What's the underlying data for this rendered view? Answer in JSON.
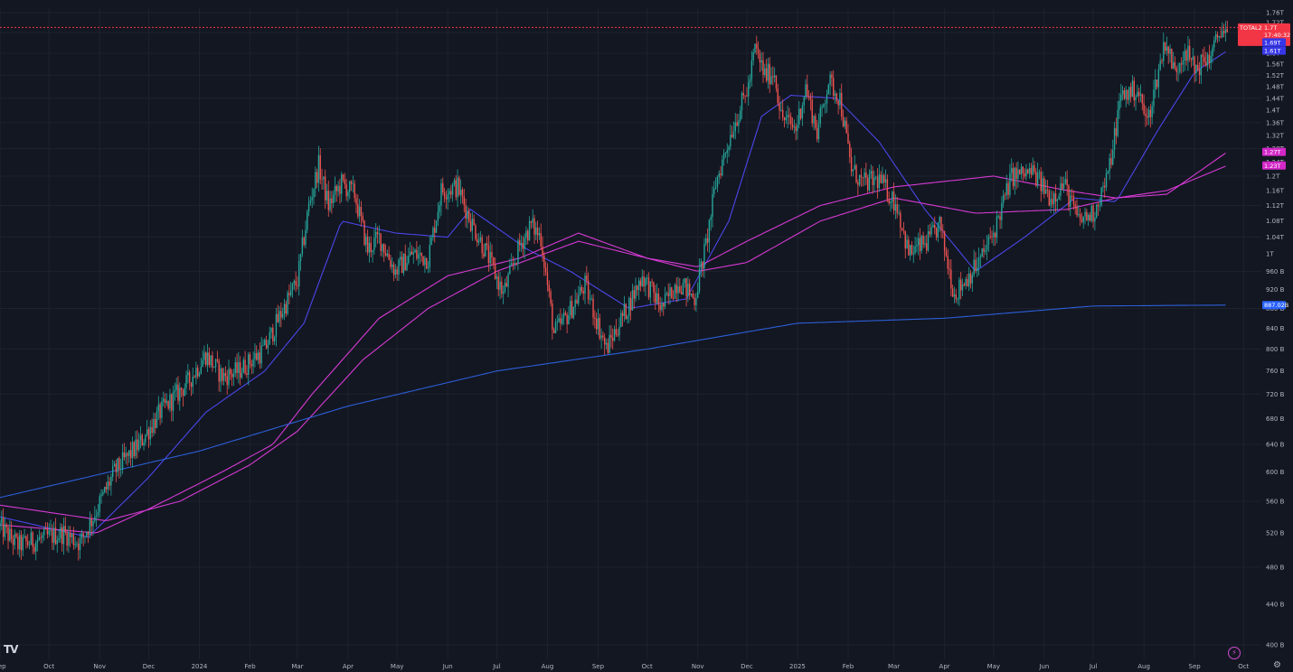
{
  "chart_data": {
    "type": "candlestick",
    "symbol": "TOTAL2",
    "y_scale": "log",
    "grid": true,
    "ylim_billions": [
      400,
      1760
    ],
    "x_range": [
      "2023-09-01",
      "2025-10-08"
    ],
    "y_ticks": [
      {
        "value": 400,
        "label": "400 B"
      },
      {
        "value": 440,
        "label": "440 B"
      },
      {
        "value": 480,
        "label": "480 B"
      },
      {
        "value": 520,
        "label": "520 B"
      },
      {
        "value": 560,
        "label": "560 B"
      },
      {
        "value": 600,
        "label": "600 B"
      },
      {
        "value": 640,
        "label": "640 B"
      },
      {
        "value": 680,
        "label": "680 B"
      },
      {
        "value": 720,
        "label": "720 B"
      },
      {
        "value": 760,
        "label": "760 B"
      },
      {
        "value": 800,
        "label": "800 B"
      },
      {
        "value": 840,
        "label": "840 B"
      },
      {
        "value": 880,
        "label": "880 B"
      },
      {
        "value": 920,
        "label": "920 B"
      },
      {
        "value": 960,
        "label": "960 B"
      },
      {
        "value": 1000,
        "label": "1T"
      },
      {
        "value": 1040,
        "label": "1.04T"
      },
      {
        "value": 1080,
        "label": "1.08T"
      },
      {
        "value": 1120,
        "label": "1.12T"
      },
      {
        "value": 1160,
        "label": "1.16T"
      },
      {
        "value": 1200,
        "label": "1.2T"
      },
      {
        "value": 1240,
        "label": "1.24T"
      },
      {
        "value": 1280,
        "label": "1.28T"
      },
      {
        "value": 1320,
        "label": "1.32T"
      },
      {
        "value": 1360,
        "label": "1.36T"
      },
      {
        "value": 1400,
        "label": "1.4T"
      },
      {
        "value": 1440,
        "label": "1.44T"
      },
      {
        "value": 1480,
        "label": "1.48T"
      },
      {
        "value": 1520,
        "label": "1.52T"
      },
      {
        "value": 1560,
        "label": "1.56T"
      },
      {
        "value": 1600,
        "label": "1.6T"
      },
      {
        "value": 1640,
        "label": "1.64T"
      },
      {
        "value": 1680,
        "label": "1.68T"
      },
      {
        "value": 1720,
        "label": "1.72T"
      },
      {
        "value": 1760,
        "label": "1.76T"
      }
    ],
    "x_ticks": [
      {
        "date": "2023-09-01",
        "label": "Sep"
      },
      {
        "date": "2023-10-01",
        "label": "Oct"
      },
      {
        "date": "2023-11-01",
        "label": "Nov"
      },
      {
        "date": "2023-12-01",
        "label": "Dec"
      },
      {
        "date": "2024-01-01",
        "label": "2024"
      },
      {
        "date": "2024-02-01",
        "label": "Feb"
      },
      {
        "date": "2024-03-01",
        "label": "Mar"
      },
      {
        "date": "2024-04-01",
        "label": "Apr"
      },
      {
        "date": "2024-05-01",
        "label": "May"
      },
      {
        "date": "2024-06-01",
        "label": "Jun"
      },
      {
        "date": "2024-07-01",
        "label": "Jul"
      },
      {
        "date": "2024-08-01",
        "label": "Aug"
      },
      {
        "date": "2024-09-01",
        "label": "Sep"
      },
      {
        "date": "2024-10-01",
        "label": "Oct"
      },
      {
        "date": "2024-11-01",
        "label": "Nov"
      },
      {
        "date": "2024-12-01",
        "label": "Dec"
      },
      {
        "date": "2025-01-01",
        "label": "2025"
      },
      {
        "date": "2025-02-01",
        "label": "Feb"
      },
      {
        "date": "2025-03-01",
        "label": "Mar"
      },
      {
        "date": "2025-04-01",
        "label": "Apr"
      },
      {
        "date": "2025-05-01",
        "label": "May"
      },
      {
        "date": "2025-06-01",
        "label": "Jun"
      },
      {
        "date": "2025-07-01",
        "label": "Jul"
      },
      {
        "date": "2025-08-01",
        "label": "Aug"
      },
      {
        "date": "2025-09-01",
        "label": "Sep"
      },
      {
        "date": "2025-10-01",
        "label": "Oct"
      }
    ],
    "price_anchors": [
      [
        "2023-09-01",
        528
      ],
      [
        "2023-09-12",
        505
      ],
      [
        "2023-09-25",
        512
      ],
      [
        "2023-10-10",
        520
      ],
      [
        "2023-10-20",
        508
      ],
      [
        "2023-10-28",
        540
      ],
      [
        "2023-11-10",
        600
      ],
      [
        "2023-11-25",
        640
      ],
      [
        "2023-12-08",
        690
      ],
      [
        "2023-12-25",
        740
      ],
      [
        "2024-01-05",
        790
      ],
      [
        "2024-01-15",
        750
      ],
      [
        "2024-01-25",
        760
      ],
      [
        "2024-02-10",
        800
      ],
      [
        "2024-02-20",
        870
      ],
      [
        "2024-03-01",
        940
      ],
      [
        "2024-03-08",
        1120
      ],
      [
        "2024-03-14",
        1230
      ],
      [
        "2024-03-20",
        1120
      ],
      [
        "2024-03-28",
        1180
      ],
      [
        "2024-04-05",
        1150
      ],
      [
        "2024-04-13",
        1010
      ],
      [
        "2024-04-20",
        1040
      ],
      [
        "2024-04-30",
        960
      ],
      [
        "2024-05-10",
        1000
      ],
      [
        "2024-05-20",
        990
      ],
      [
        "2024-05-28",
        1160
      ],
      [
        "2024-06-07",
        1170
      ],
      [
        "2024-06-15",
        1080
      ],
      [
        "2024-06-25",
        1000
      ],
      [
        "2024-07-05",
        910
      ],
      [
        "2024-07-15",
        1020
      ],
      [
        "2024-07-22",
        1070
      ],
      [
        "2024-07-28",
        1040
      ],
      [
        "2024-08-05",
        830
      ],
      [
        "2024-08-12",
        860
      ],
      [
        "2024-08-24",
        930
      ],
      [
        "2024-09-06",
        800
      ],
      [
        "2024-09-20",
        890
      ],
      [
        "2024-09-28",
        950
      ],
      [
        "2024-10-10",
        880
      ],
      [
        "2024-10-20",
        940
      ],
      [
        "2024-10-30",
        900
      ],
      [
        "2024-11-06",
        1020
      ],
      [
        "2024-11-12",
        1180
      ],
      [
        "2024-11-22",
        1340
      ],
      [
        "2024-12-02",
        1480
      ],
      [
        "2024-12-06",
        1620
      ],
      [
        "2024-12-12",
        1520
      ],
      [
        "2024-12-18",
        1530
      ],
      [
        "2024-12-22",
        1380
      ],
      [
        "2024-12-31",
        1340
      ],
      [
        "2025-01-06",
        1480
      ],
      [
        "2025-01-13",
        1330
      ],
      [
        "2025-01-20",
        1500
      ],
      [
        "2025-01-27",
        1440
      ],
      [
        "2025-02-03",
        1220
      ],
      [
        "2025-02-10",
        1180
      ],
      [
        "2025-02-20",
        1190
      ],
      [
        "2025-03-03",
        1120
      ],
      [
        "2025-03-10",
        1000
      ],
      [
        "2025-03-22",
        1030
      ],
      [
        "2025-03-29",
        1070
      ],
      [
        "2025-04-07",
        910
      ],
      [
        "2025-04-22",
        980
      ],
      [
        "2025-05-01",
        1050
      ],
      [
        "2025-05-12",
        1200
      ],
      [
        "2025-05-25",
        1210
      ],
      [
        "2025-06-05",
        1140
      ],
      [
        "2025-06-13",
        1180
      ],
      [
        "2025-06-22",
        1080
      ],
      [
        "2025-07-01",
        1100
      ],
      [
        "2025-07-10",
        1200
      ],
      [
        "2025-07-18",
        1450
      ],
      [
        "2025-07-28",
        1470
      ],
      [
        "2025-08-03",
        1360
      ],
      [
        "2025-08-14",
        1650
      ],
      [
        "2025-08-20",
        1530
      ],
      [
        "2025-08-26",
        1620
      ],
      [
        "2025-09-01",
        1540
      ],
      [
        "2025-09-12",
        1600
      ],
      [
        "2025-09-17",
        1700
      ],
      [
        "2025-09-21",
        1660
      ]
    ],
    "indicators": [
      {
        "color": "#4b46e8",
        "points": [
          [
            "2023-09-01",
            540
          ],
          [
            "2023-10-25",
            515
          ],
          [
            "2023-11-30",
            590
          ],
          [
            "2024-01-05",
            690
          ],
          [
            "2024-02-10",
            760
          ],
          [
            "2024-03-05",
            850
          ],
          [
            "2024-03-28",
            1080
          ],
          [
            "2024-04-30",
            1050
          ],
          [
            "2024-06-01",
            1040
          ],
          [
            "2024-06-15",
            1110
          ],
          [
            "2024-07-20",
            1010
          ],
          [
            "2024-08-15",
            960
          ],
          [
            "2024-09-20",
            880
          ],
          [
            "2024-10-25",
            900
          ],
          [
            "2024-11-20",
            1080
          ],
          [
            "2024-12-10",
            1380
          ],
          [
            "2024-12-28",
            1450
          ],
          [
            "2025-01-25",
            1440
          ],
          [
            "2025-02-20",
            1300
          ],
          [
            "2025-03-20",
            1110
          ],
          [
            "2025-04-20",
            960
          ],
          [
            "2025-05-20",
            1040
          ],
          [
            "2025-06-20",
            1140
          ],
          [
            "2025-07-15",
            1130
          ],
          [
            "2025-08-10",
            1340
          ],
          [
            "2025-09-01",
            1530
          ],
          [
            "2025-09-21",
            1610
          ]
        ]
      },
      {
        "color": "#d63ad3",
        "points": [
          [
            "2023-09-01",
            530
          ],
          [
            "2023-10-30",
            520
          ],
          [
            "2023-12-01",
            550
          ],
          [
            "2024-01-15",
            600
          ],
          [
            "2024-02-15",
            640
          ],
          [
            "2024-03-10",
            720
          ],
          [
            "2024-04-20",
            860
          ],
          [
            "2024-06-01",
            950
          ],
          [
            "2024-07-15",
            990
          ],
          [
            "2024-08-20",
            1050
          ],
          [
            "2024-10-01",
            990
          ],
          [
            "2024-11-01",
            960
          ],
          [
            "2024-12-01",
            980
          ],
          [
            "2025-01-15",
            1080
          ],
          [
            "2025-03-01",
            1140
          ],
          [
            "2025-04-20",
            1100
          ],
          [
            "2025-06-15",
            1110
          ],
          [
            "2025-07-15",
            1140
          ],
          [
            "2025-08-15",
            1160
          ],
          [
            "2025-09-21",
            1230
          ]
        ]
      },
      {
        "color": "#d63ad3",
        "points": [
          [
            "2023-09-01",
            555
          ],
          [
            "2023-11-05",
            535
          ],
          [
            "2023-12-20",
            560
          ],
          [
            "2024-02-01",
            610
          ],
          [
            "2024-03-01",
            660
          ],
          [
            "2024-04-10",
            780
          ],
          [
            "2024-05-20",
            880
          ],
          [
            "2024-07-01",
            960
          ],
          [
            "2024-08-20",
            1030
          ],
          [
            "2024-10-01",
            990
          ],
          [
            "2024-11-01",
            970
          ],
          [
            "2024-12-01",
            1030
          ],
          [
            "2025-01-15",
            1120
          ],
          [
            "2025-03-01",
            1170
          ],
          [
            "2025-05-01",
            1200
          ],
          [
            "2025-06-15",
            1160
          ],
          [
            "2025-07-15",
            1140
          ],
          [
            "2025-08-15",
            1150
          ],
          [
            "2025-09-21",
            1270
          ]
        ]
      },
      {
        "color": "#2c5fd8",
        "points": [
          [
            "2023-09-01",
            565
          ],
          [
            "2024-01-01",
            630
          ],
          [
            "2024-04-01",
            700
          ],
          [
            "2024-07-01",
            760
          ],
          [
            "2024-10-01",
            800
          ],
          [
            "2025-01-01",
            850
          ],
          [
            "2025-04-01",
            860
          ],
          [
            "2025-07-01",
            885
          ],
          [
            "2025-09-21",
            887
          ]
        ]
      }
    ],
    "current_price_line": {
      "value": 1700,
      "color": "#f23645"
    },
    "price_badges": [
      {
        "lines": [
          "TOTAL2",
          "1.7T",
          "17:40:32"
        ],
        "value": 1700,
        "color": "#f23645"
      },
      {
        "lines": [
          "1.69T"
        ],
        "value": 1690,
        "color": "#3737e8"
      },
      {
        "lines": [
          "1.61T"
        ],
        "value": 1610,
        "color": "#3737e8"
      },
      {
        "lines": [
          "1.27T"
        ],
        "value": 1270,
        "color": "#d428c8"
      },
      {
        "lines": [
          "1.23T"
        ],
        "value": 1230,
        "color": "#d428c8"
      },
      {
        "lines": [
          "887.02B"
        ],
        "value": 887.02,
        "color": "#2962ff"
      }
    ],
    "colors": {
      "up": "#26a69a",
      "down": "#ef5350",
      "grid": "#1e222d",
      "background": "#131722"
    }
  },
  "icons": [
    "tradingview-logo",
    "lightning-icon",
    "gear-icon"
  ],
  "logo_text": "TV"
}
